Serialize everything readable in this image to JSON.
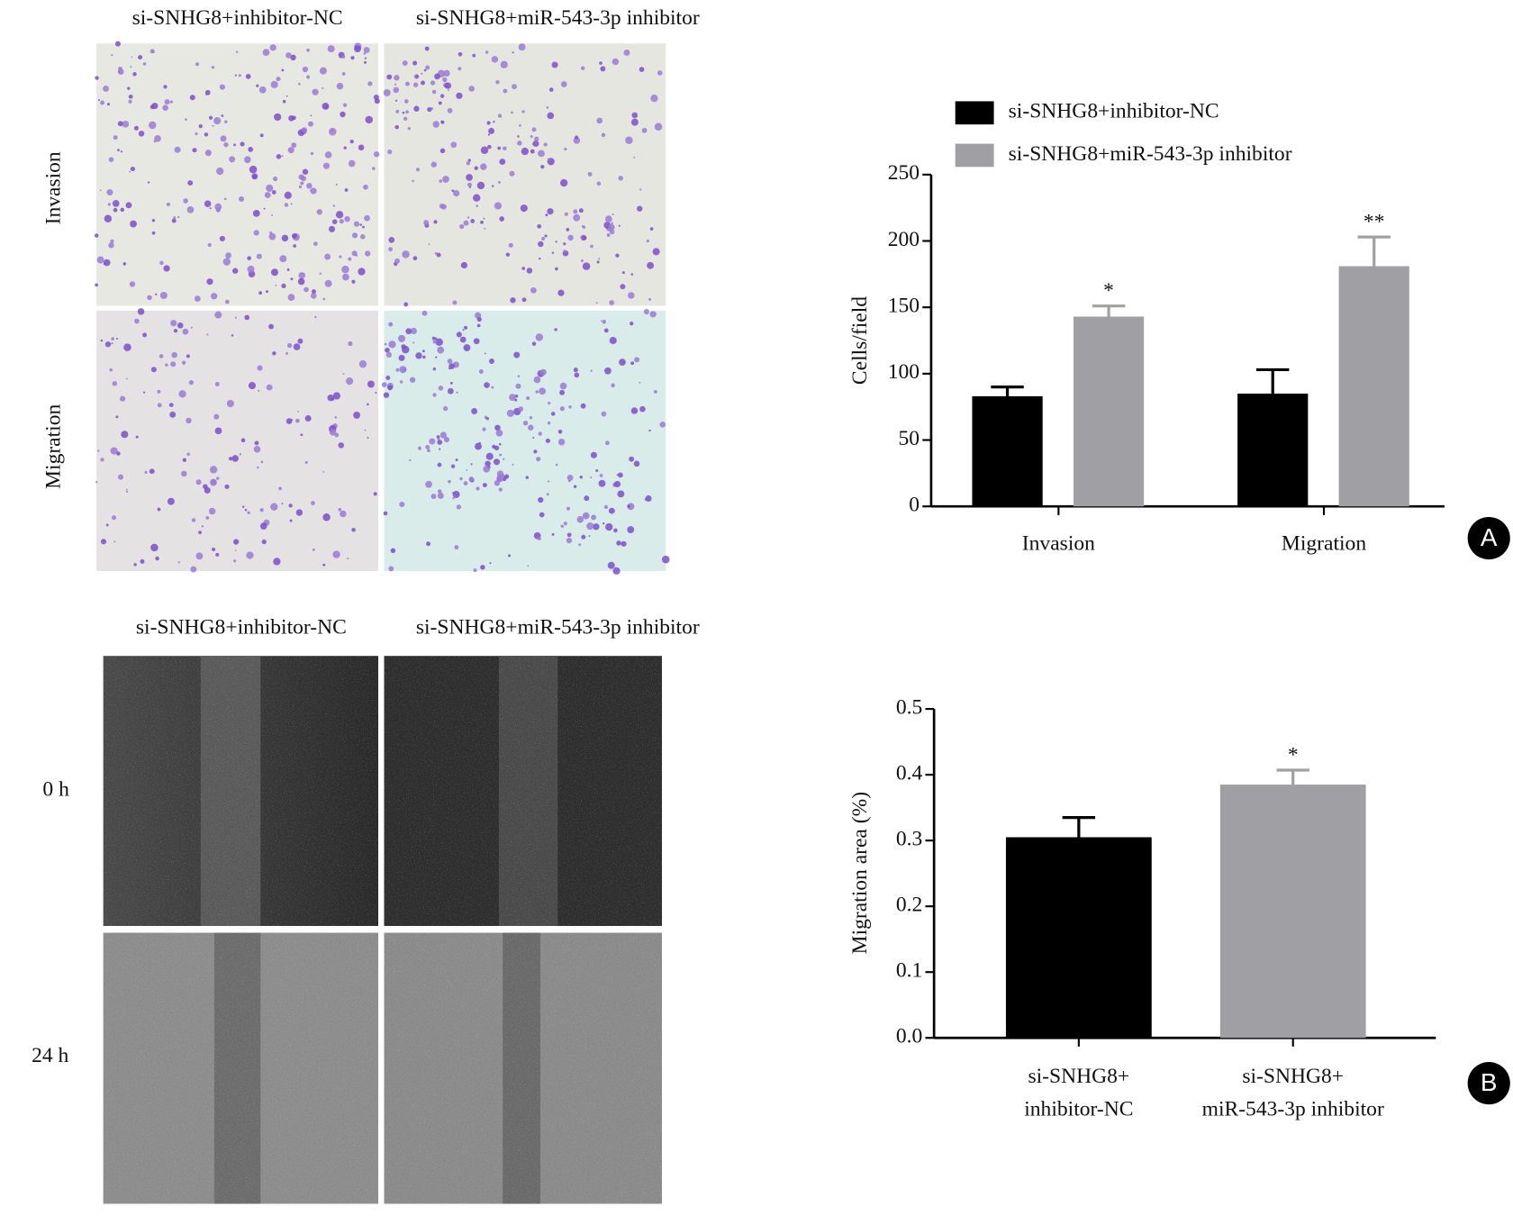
{
  "panels": [
    {
      "label": "A",
      "columns": [
        "si-SNHG8+inhibitor-NC",
        "si-SNHG8+miR-543-3p inhibitor"
      ],
      "rows": [
        "Invasion",
        "Migration"
      ]
    },
    {
      "label": "B",
      "columns": [
        "si-SNHG8+inhibitor-NC",
        "si-SNHG8+miR-543-3p inhibitor"
      ],
      "rows": [
        "0 h",
        "24 h"
      ]
    }
  ],
  "chart_data": [
    {
      "type": "grouped_bar",
      "ylabel": "Cells/field",
      "categories": [
        "Invasion",
        "Migration"
      ],
      "series": [
        {
          "name": "si-SNHG8+inhibitor-NC",
          "color": "#000000",
          "values": [
            83,
            85
          ],
          "errors": [
            7,
            18
          ]
        },
        {
          "name": "si-SNHG8+miR-543-3p inhibitor",
          "color": "#a0a0a4",
          "values": [
            143,
            181
          ],
          "errors": [
            8,
            22
          ],
          "annotations": [
            "*",
            "**"
          ]
        }
      ],
      "ylim": [
        0,
        250
      ],
      "yticks": [
        0,
        50,
        100,
        150,
        200,
        250
      ],
      "legend": "top"
    },
    {
      "type": "bar",
      "ylabel": "Migration area (%)",
      "categories": [
        "si-SNHG8+ inhibitor-NC",
        "si-SNHG8+ miR-543-3p inhibitor"
      ],
      "values": [
        0.305,
        0.385
      ],
      "errors": [
        0.03,
        0.022
      ],
      "colors": [
        "#000000",
        "#a0a0a4"
      ],
      "annotations": [
        null,
        "*"
      ],
      "ylim": [
        0,
        0.5
      ],
      "yticks": [
        {
          "value": 0,
          "label": "0.0"
        },
        0.1,
        0.2,
        0.3,
        0.4,
        0.5
      ]
    }
  ]
}
